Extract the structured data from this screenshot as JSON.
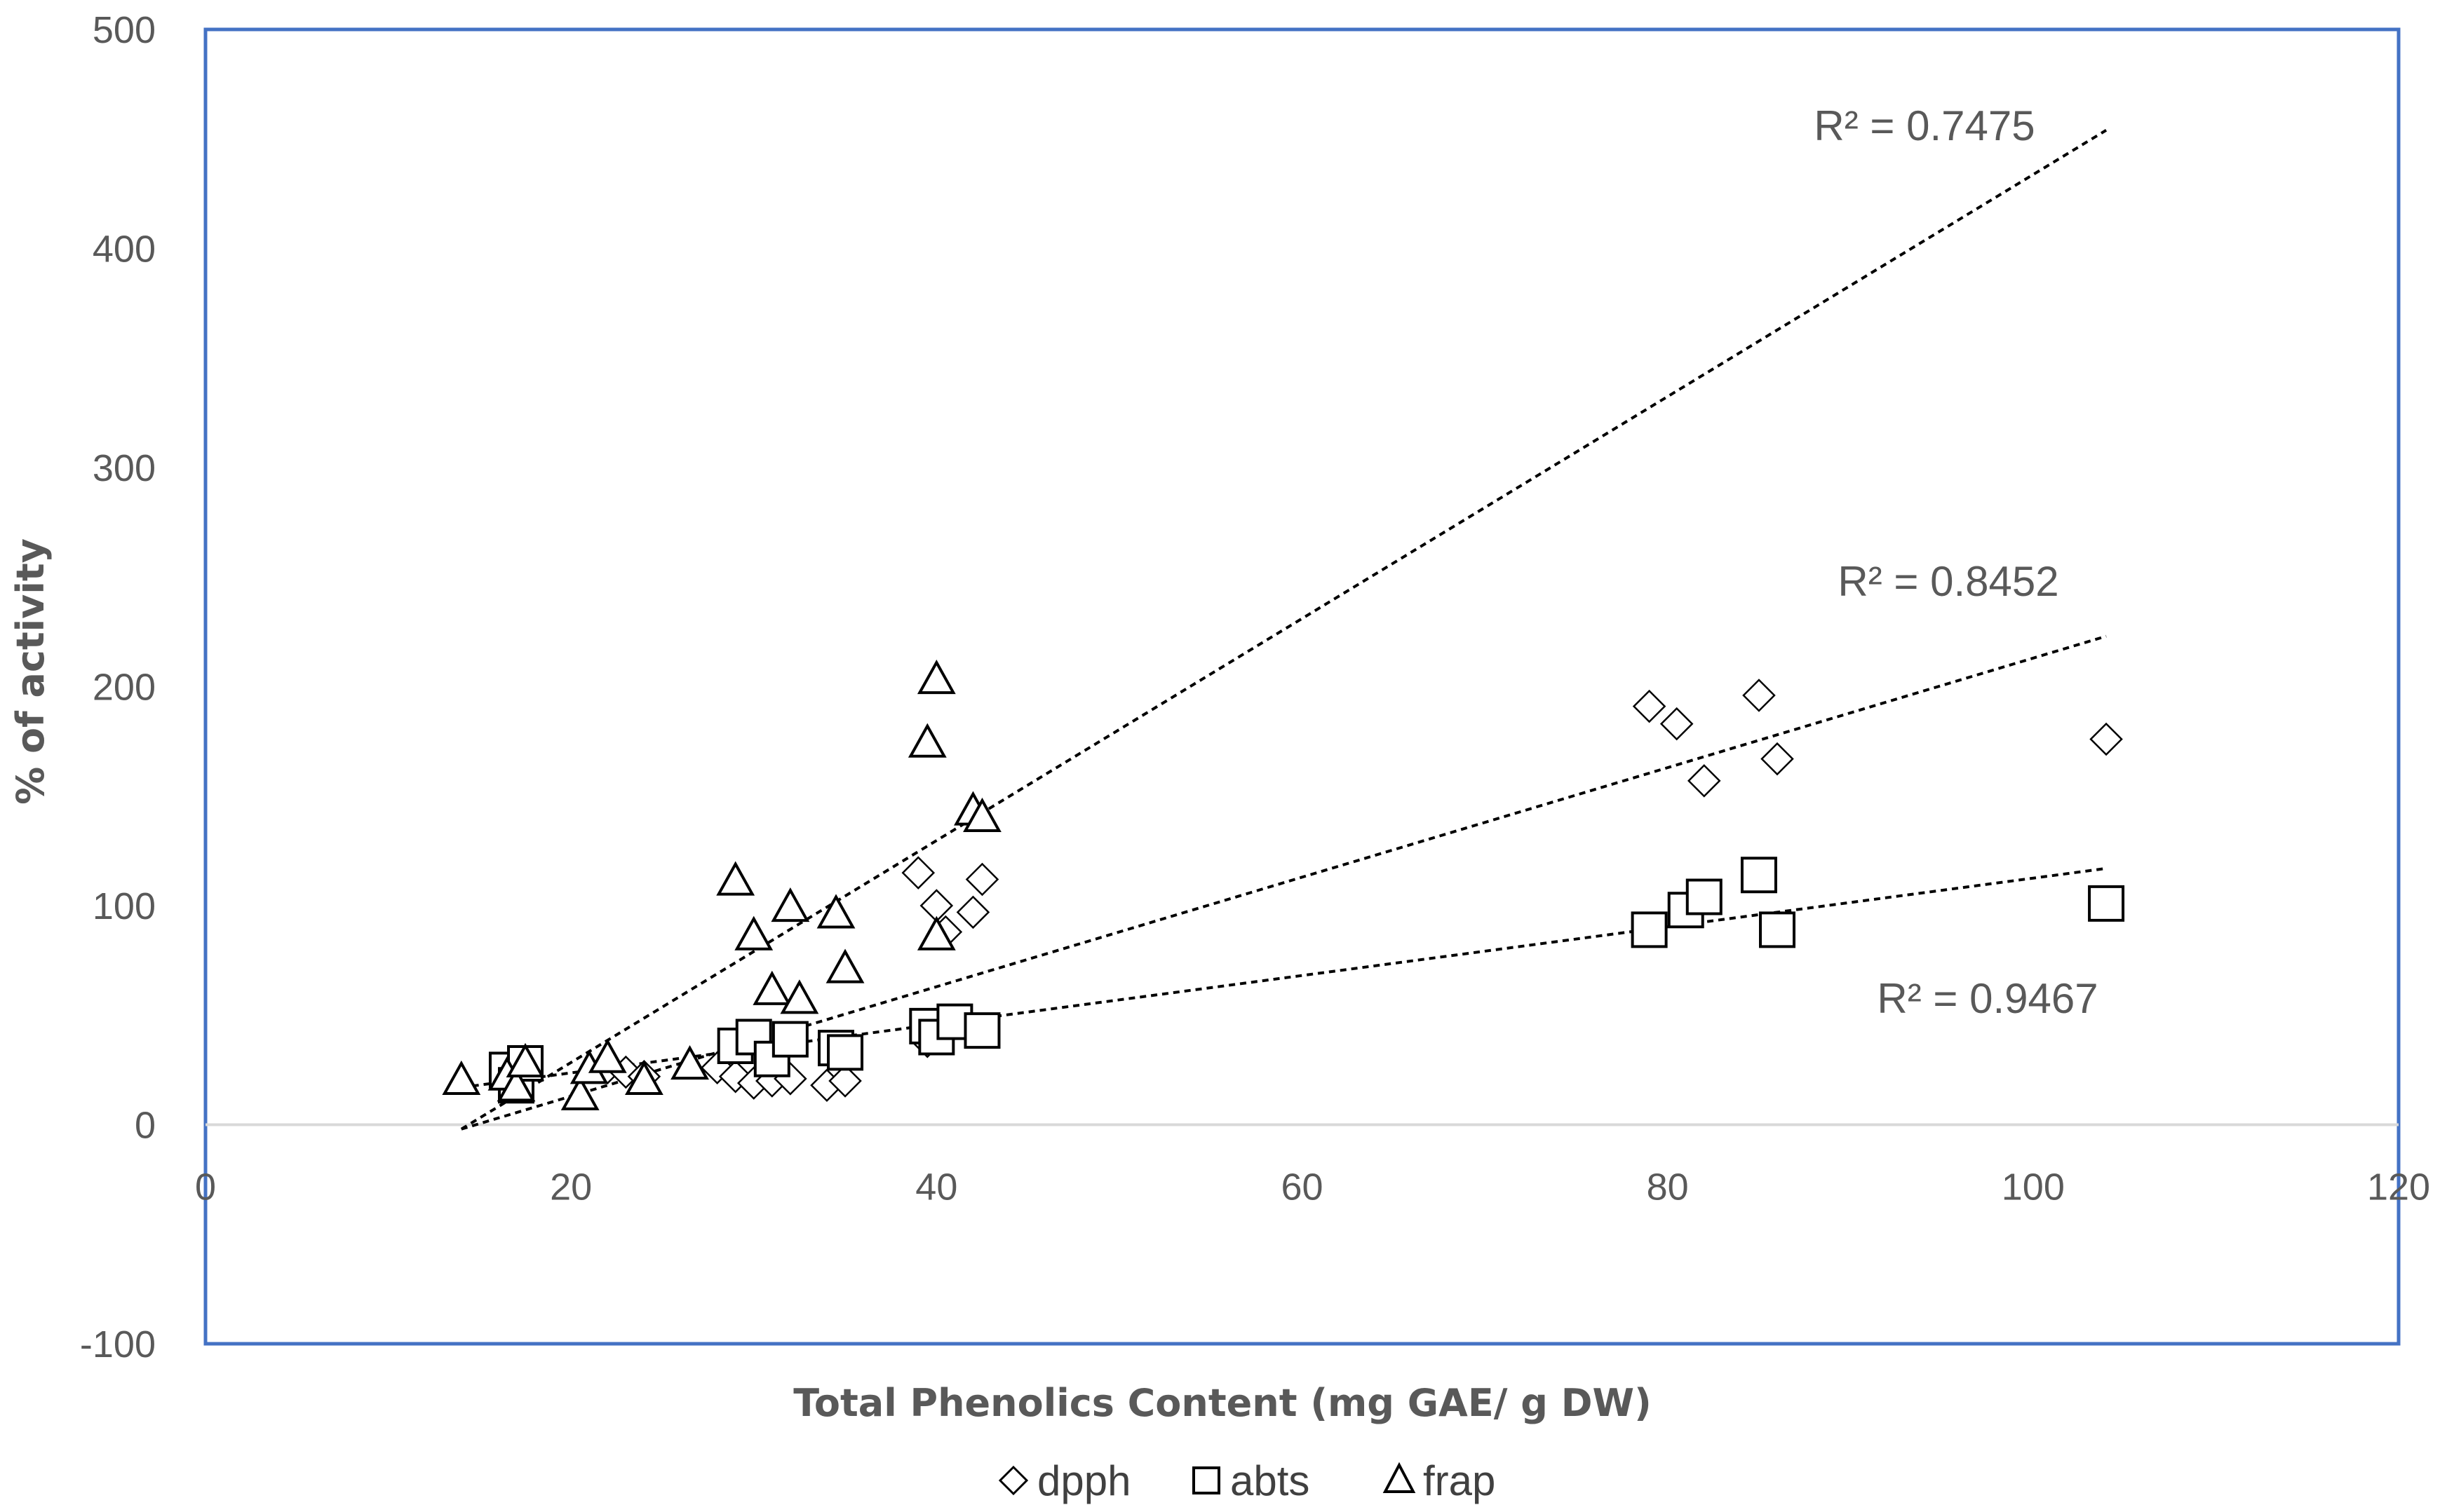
{
  "chart_data": {
    "type": "scatter",
    "title": "",
    "xlabel": "Total Phenolics Content (mg GAE/ g DW)",
    "ylabel": "% of activity",
    "xlim": [
      0,
      120
    ],
    "ylim": [
      -100,
      500
    ],
    "xticks": [
      0,
      20,
      40,
      60,
      80,
      100,
      120
    ],
    "yticks": [
      -100,
      0,
      100,
      200,
      300,
      400,
      500
    ],
    "grid": "zero-line only",
    "legend_position": "bottom",
    "series": [
      {
        "name": "dpph",
        "marker": "diamond",
        "points": [
          [
            17,
            22
          ],
          [
            22,
            26
          ],
          [
            23,
            24
          ],
          [
            24,
            22
          ],
          [
            28,
            26
          ],
          [
            29,
            22
          ],
          [
            30,
            19
          ],
          [
            31,
            20
          ],
          [
            32,
            21
          ],
          [
            34,
            18
          ],
          [
            35,
            20
          ],
          [
            39,
            115
          ],
          [
            39.5,
            38
          ],
          [
            40,
            100
          ],
          [
            40.5,
            88
          ],
          [
            42,
            97
          ],
          [
            42.5,
            112
          ],
          [
            79,
            191
          ],
          [
            80.5,
            183
          ],
          [
            82,
            157
          ],
          [
            85,
            196
          ],
          [
            86,
            167
          ],
          [
            104,
            176
          ]
        ],
        "trendline": {
          "x": [
            14,
            104
          ],
          "y": [
            -2,
            223
          ]
        },
        "r2_label": "R² = 0.8452"
      },
      {
        "name": "abts",
        "marker": "square",
        "points": [
          [
            16.5,
            25
          ],
          [
            17,
            18
          ],
          [
            17.5,
            28
          ],
          [
            29,
            36
          ],
          [
            30,
            40
          ],
          [
            31,
            30
          ],
          [
            32,
            39
          ],
          [
            34.5,
            35
          ],
          [
            35,
            33
          ],
          [
            39.5,
            45
          ],
          [
            40,
            40
          ],
          [
            41,
            47
          ],
          [
            42.5,
            43
          ],
          [
            79,
            89
          ],
          [
            81,
            98
          ],
          [
            82,
            104
          ],
          [
            85,
            114
          ],
          [
            86,
            89
          ],
          [
            104,
            101
          ]
        ],
        "trendline": {
          "x": [
            14,
            104
          ],
          "y": [
            17,
            117
          ]
        },
        "r2_label": "R² = 0.9467"
      },
      {
        "name": "frap",
        "marker": "triangle",
        "points": [
          [
            14,
            20
          ],
          [
            16.5,
            22
          ],
          [
            17,
            17
          ],
          [
            17.5,
            28
          ],
          [
            20.5,
            13
          ],
          [
            21,
            25
          ],
          [
            22,
            30
          ],
          [
            24,
            20
          ],
          [
            26.5,
            27
          ],
          [
            29,
            111
          ],
          [
            30,
            86
          ],
          [
            31,
            61
          ],
          [
            32,
            99
          ],
          [
            32.5,
            57
          ],
          [
            34.5,
            96
          ],
          [
            35,
            71
          ],
          [
            39.5,
            174
          ],
          [
            40,
            203
          ],
          [
            40,
            86
          ],
          [
            42,
            143
          ],
          [
            42.5,
            140
          ]
        ],
        "trendline": {
          "x": [
            14,
            104
          ],
          "y": [
            -2,
            454
          ]
        },
        "r2_label": "R² = 0.7475"
      }
    ]
  }
}
